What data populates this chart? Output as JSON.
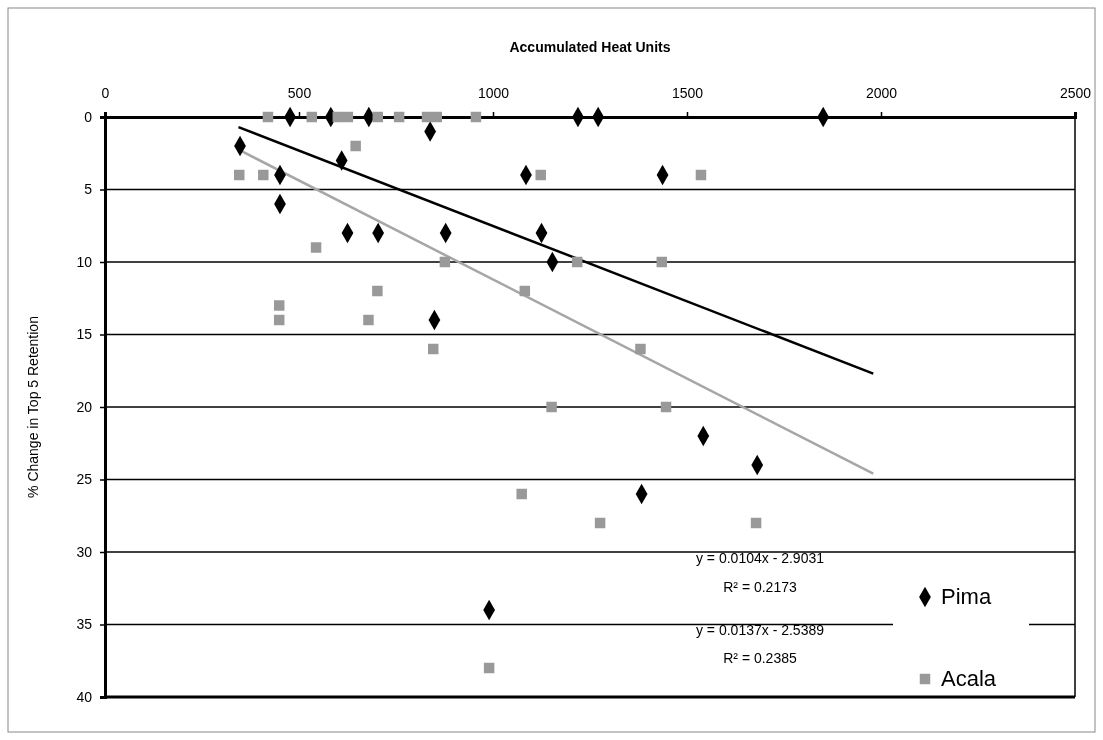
{
  "chart_data": {
    "type": "scatter",
    "xlabel": "Accumulated Heat Units",
    "ylabel": "% Change in Top 5 Retention",
    "xlim": [
      0,
      2500
    ],
    "xticks": [
      0,
      500,
      1000,
      1500,
      2000,
      2500
    ],
    "ylim": [
      40,
      0
    ],
    "yticks": [
      0,
      5,
      10,
      15,
      20,
      25,
      30,
      35,
      40
    ],
    "grid": "y",
    "legend": "bottom right",
    "series": [
      {
        "name": "Pima",
        "color": "#000000",
        "marker": "diamond",
        "x": [
          477,
          582,
          680,
          1219,
          1271,
          1851,
          838,
          348,
          610,
          451,
          1085,
          1437,
          451,
          625,
          704,
          878,
          1125,
          1153,
          849,
          1542,
          1681,
          1383,
          990
        ],
        "values": [
          0,
          0,
          0,
          0,
          0,
          0,
          1,
          2,
          3,
          4,
          4,
          4,
          6,
          8,
          8,
          8,
          8,
          10,
          14,
          22,
          24,
          26,
          34
        ]
      },
      {
        "name": "Acala",
        "color": "#999999",
        "marker": "square",
        "x": [
          420,
          533,
          600,
          626,
          703,
          758,
          830,
          855,
          956,
          646,
          346,
          408,
          1123,
          1536,
          544,
          876,
          1217,
          1435,
          702,
          1082,
          449,
          449,
          679,
          846,
          1380,
          1151,
          1446,
          1074,
          1276,
          1678,
          990
        ],
        "values": [
          0,
          0,
          0,
          0,
          0,
          0,
          0,
          0,
          0,
          2,
          4,
          4,
          4,
          4,
          9,
          10,
          10,
          10,
          12,
          12,
          13,
          14,
          14,
          16,
          16,
          20,
          20,
          26,
          28,
          28,
          38
        ]
      },
      {
        "type": "line",
        "color": "#000000",
        "x": [
          344,
          1980
        ],
        "values": [
          0.7,
          17.7
        ]
      },
      {
        "type": "line",
        "color": "#a6a6a6",
        "x": [
          348,
          1980
        ],
        "values": [
          2.3,
          24.6
        ]
      }
    ],
    "annotations": [
      "y = 0.0104x - 2.9031",
      "R² = 0.2173",
      "y = 0.0137x - 2.5389",
      "R² = 0.2385"
    ]
  }
}
